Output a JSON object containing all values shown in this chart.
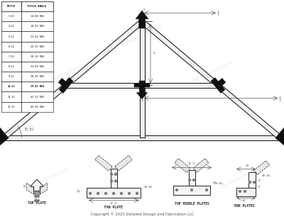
{
  "background_color": "#ffffff",
  "watermark_text": "BarnBrackets.com",
  "copyright_text": "Copyright © 2022 Detailed Design and Fabrication LLC",
  "pitch_table": {
    "headers": [
      "PITCH",
      "PITCH ANGLE"
    ],
    "rows": [
      [
        "3-12",
        "14.04 DEG"
      ],
      [
        "4-12",
        "18.43 DEG"
      ],
      [
        "5-12",
        "22.62 DEG"
      ],
      [
        "6-12",
        "26.57 DEG"
      ],
      [
        "7-12",
        "30.26 DEG"
      ],
      [
        "8-12",
        "33.69 DEG"
      ],
      [
        "9-12",
        "36.87 DEG"
      ],
      [
        "10-12",
        "39.81 DEG"
      ],
      [
        "11-12",
        "42.51 DEG"
      ],
      [
        "12-12",
        "45.00 DEG"
      ]
    ]
  },
  "angle_label": "39.81",
  "detail_labels": [
    "TOP PLATE",
    "FAN PLATE",
    "TOP MIDDLE PLATES",
    "END PLATES"
  ]
}
